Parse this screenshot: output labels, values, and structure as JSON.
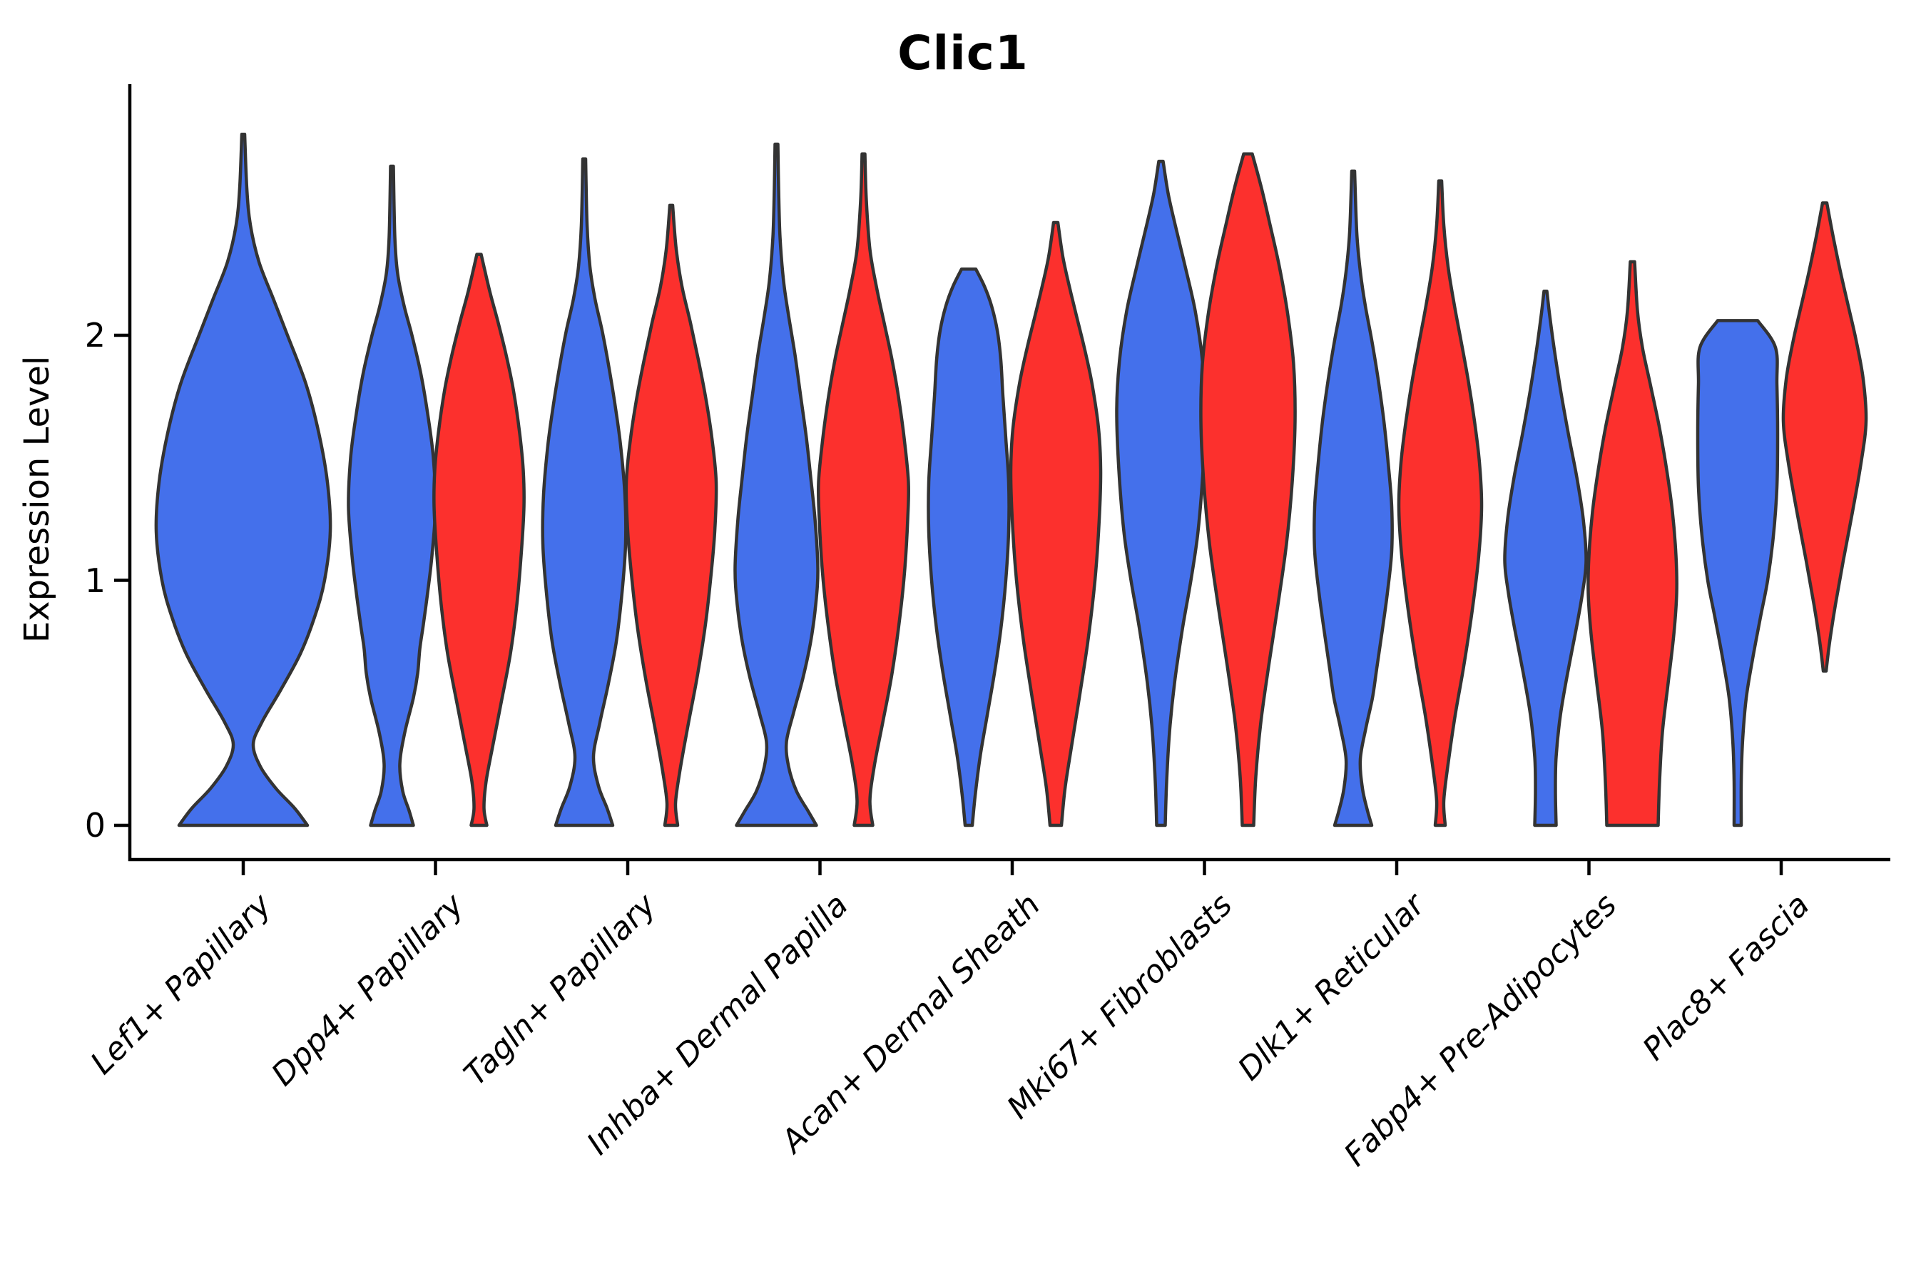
{
  "title": "Clic1",
  "axes": {
    "y_label": "Expression Level",
    "y_ticks": [
      "0",
      "1",
      "2"
    ],
    "x_categories": [
      "Lef1+ Papillary",
      "Dpp4+ Papillary",
      "Tagln+ Papillary",
      "Inhba+ Dermal Papilla",
      "Acan+ Dermal Sheath",
      "Mki67+ Fibroblasts",
      "Dlk1+ Reticular",
      "Fabp4+ Pre-Adipocytes",
      "Plac8+ Fascia"
    ]
  },
  "colors": {
    "blue": "#4470EB",
    "red": "#FC302D",
    "outline": "#333333",
    "axis": "#000000"
  },
  "chart_data": {
    "type": "violin",
    "title": "Clic1",
    "ylabel": "Expression Level",
    "yticks": [
      0,
      1,
      2
    ],
    "ylim": [
      -0.14,
      3.05
    ],
    "grid": false,
    "legend": "none",
    "categories": [
      "Lef1+ Papillary",
      "Dpp4+ Papillary",
      "Tagln+ Papillary",
      "Inhba+ Dermal Papilla",
      "Acan+ Dermal Sheath",
      "Mki67+ Fibroblasts",
      "Dlk1+ Reticular",
      "Fabp4+ Pre-Adipocytes",
      "Plac8+ Fascia"
    ],
    "splits": [
      "blue",
      "red"
    ],
    "violins": [
      {
        "category_index": 0,
        "split": "blue",
        "dodge": 0,
        "profile": [
          [
            0,
            90
          ],
          [
            0.07,
            72
          ],
          [
            0.15,
            46
          ],
          [
            0.24,
            24
          ],
          [
            0.33,
            14
          ],
          [
            0.42,
            26
          ],
          [
            0.55,
            52
          ],
          [
            0.7,
            80
          ],
          [
            0.85,
            100
          ],
          [
            1.0,
            114
          ],
          [
            1.2,
            122
          ],
          [
            1.4,
            118
          ],
          [
            1.6,
            106
          ],
          [
            1.8,
            88
          ],
          [
            2.0,
            62
          ],
          [
            2.15,
            42
          ],
          [
            2.3,
            22
          ],
          [
            2.45,
            10
          ],
          [
            2.6,
            5
          ],
          [
            2.82,
            2
          ]
        ]
      },
      {
        "category_index": 1,
        "split": "blue",
        "dodge": -1,
        "profile": [
          [
            0,
            30
          ],
          [
            0.06,
            24
          ],
          [
            0.14,
            15
          ],
          [
            0.25,
            11
          ],
          [
            0.38,
            18
          ],
          [
            0.52,
            30
          ],
          [
            0.62,
            36
          ],
          [
            0.72,
            39
          ],
          [
            0.82,
            44
          ],
          [
            0.95,
            50
          ],
          [
            1.1,
            56
          ],
          [
            1.3,
            61
          ],
          [
            1.5,
            58
          ],
          [
            1.68,
            50
          ],
          [
            1.85,
            40
          ],
          [
            2.0,
            28
          ],
          [
            2.12,
            17
          ],
          [
            2.25,
            8
          ],
          [
            2.4,
            4
          ],
          [
            2.69,
            2
          ]
        ]
      },
      {
        "category_index": 1,
        "split": "red",
        "dodge": 1,
        "profile": [
          [
            0,
            11
          ],
          [
            0.07,
            7
          ],
          [
            0.18,
            10
          ],
          [
            0.32,
            19
          ],
          [
            0.5,
            31
          ],
          [
            0.7,
            44
          ],
          [
            0.9,
            53
          ],
          [
            1.1,
            59
          ],
          [
            1.3,
            63
          ],
          [
            1.45,
            62
          ],
          [
            1.6,
            57
          ],
          [
            1.78,
            48
          ],
          [
            1.92,
            38
          ],
          [
            2.05,
            27
          ],
          [
            2.18,
            15
          ],
          [
            2.33,
            3
          ]
        ]
      },
      {
        "category_index": 2,
        "split": "blue",
        "dodge": -1,
        "profile": [
          [
            0,
            40
          ],
          [
            0.07,
            32
          ],
          [
            0.16,
            20
          ],
          [
            0.28,
            13
          ],
          [
            0.42,
            22
          ],
          [
            0.58,
            34
          ],
          [
            0.75,
            45
          ],
          [
            0.95,
            53
          ],
          [
            1.15,
            58
          ],
          [
            1.35,
            57
          ],
          [
            1.55,
            51
          ],
          [
            1.72,
            43
          ],
          [
            1.88,
            34
          ],
          [
            2.02,
            25
          ],
          [
            2.15,
            15
          ],
          [
            2.28,
            8
          ],
          [
            2.45,
            4
          ],
          [
            2.72,
            2
          ]
        ]
      },
      {
        "category_index": 2,
        "split": "red",
        "dodge": 1,
        "profile": [
          [
            0,
            9
          ],
          [
            0.09,
            6
          ],
          [
            0.22,
            12
          ],
          [
            0.4,
            23
          ],
          [
            0.6,
            36
          ],
          [
            0.8,
            47
          ],
          [
            1.0,
            55
          ],
          [
            1.2,
            61
          ],
          [
            1.4,
            63
          ],
          [
            1.58,
            57
          ],
          [
            1.75,
            48
          ],
          [
            1.9,
            38
          ],
          [
            2.05,
            27
          ],
          [
            2.2,
            15
          ],
          [
            2.35,
            7
          ],
          [
            2.53,
            2
          ]
        ]
      },
      {
        "category_index": 3,
        "split": "blue",
        "dodge": -1,
        "profile": [
          [
            0,
            56
          ],
          [
            0.06,
            44
          ],
          [
            0.14,
            28
          ],
          [
            0.24,
            17
          ],
          [
            0.34,
            14
          ],
          [
            0.46,
            24
          ],
          [
            0.6,
            37
          ],
          [
            0.75,
            48
          ],
          [
            0.9,
            55
          ],
          [
            1.05,
            58
          ],
          [
            1.25,
            54
          ],
          [
            1.42,
            48
          ],
          [
            1.58,
            42
          ],
          [
            1.75,
            34
          ],
          [
            1.92,
            26
          ],
          [
            2.08,
            17
          ],
          [
            2.22,
            10
          ],
          [
            2.4,
            5
          ],
          [
            2.6,
            3
          ],
          [
            2.78,
            2
          ]
        ]
      },
      {
        "category_index": 3,
        "split": "red",
        "dodge": 1,
        "profile": [
          [
            0,
            13
          ],
          [
            0.1,
            9
          ],
          [
            0.24,
            15
          ],
          [
            0.42,
            27
          ],
          [
            0.62,
            40
          ],
          [
            0.85,
            51
          ],
          [
            1.05,
            58
          ],
          [
            1.25,
            62
          ],
          [
            1.4,
            63
          ],
          [
            1.58,
            57
          ],
          [
            1.75,
            49
          ],
          [
            1.9,
            40
          ],
          [
            2.05,
            29
          ],
          [
            2.2,
            18
          ],
          [
            2.35,
            9
          ],
          [
            2.55,
            4
          ],
          [
            2.74,
            2
          ]
        ]
      },
      {
        "category_index": 4,
        "split": "blue",
        "dodge": -1,
        "profile": [
          [
            0,
            5
          ],
          [
            0.12,
            9
          ],
          [
            0.28,
            16
          ],
          [
            0.45,
            26
          ],
          [
            0.62,
            36
          ],
          [
            0.8,
            45
          ],
          [
            1.0,
            52
          ],
          [
            1.2,
            56
          ],
          [
            1.4,
            56
          ],
          [
            1.58,
            52
          ],
          [
            1.75,
            48
          ],
          [
            1.9,
            45
          ],
          [
            2.02,
            40
          ],
          [
            2.12,
            32
          ],
          [
            2.2,
            22
          ],
          [
            2.27,
            10
          ]
        ]
      },
      {
        "category_index": 4,
        "split": "red",
        "dodge": 1,
        "profile": [
          [
            0,
            8
          ],
          [
            0.15,
            13
          ],
          [
            0.32,
            22
          ],
          [
            0.52,
            33
          ],
          [
            0.75,
            45
          ],
          [
            1.0,
            55
          ],
          [
            1.25,
            61
          ],
          [
            1.45,
            63
          ],
          [
            1.62,
            60
          ],
          [
            1.8,
            51
          ],
          [
            1.95,
            40
          ],
          [
            2.08,
            29
          ],
          [
            2.2,
            19
          ],
          [
            2.32,
            10
          ],
          [
            2.46,
            3
          ]
        ]
      },
      {
        "category_index": 5,
        "split": "blue",
        "dodge": -1,
        "profile": [
          [
            0,
            6
          ],
          [
            0.18,
            8
          ],
          [
            0.38,
            12
          ],
          [
            0.58,
            19
          ],
          [
            0.8,
            30
          ],
          [
            1.0,
            42
          ],
          [
            1.2,
            52
          ],
          [
            1.45,
            59
          ],
          [
            1.7,
            62
          ],
          [
            1.9,
            58
          ],
          [
            2.1,
            48
          ],
          [
            2.28,
            34
          ],
          [
            2.45,
            20
          ],
          [
            2.58,
            10
          ],
          [
            2.71,
            3
          ]
        ]
      },
      {
        "category_index": 5,
        "split": "red",
        "dodge": 1,
        "profile": [
          [
            0,
            8
          ],
          [
            0.2,
            11
          ],
          [
            0.42,
            18
          ],
          [
            0.65,
            29
          ],
          [
            0.9,
            42
          ],
          [
            1.15,
            54
          ],
          [
            1.4,
            62
          ],
          [
            1.65,
            66
          ],
          [
            1.88,
            64
          ],
          [
            2.08,
            56
          ],
          [
            2.28,
            44
          ],
          [
            2.45,
            31
          ],
          [
            2.6,
            19
          ],
          [
            2.74,
            6
          ]
        ]
      },
      {
        "category_index": 6,
        "split": "blue",
        "dodge": -1,
        "profile": [
          [
            0,
            26
          ],
          [
            0.06,
            20
          ],
          [
            0.15,
            13
          ],
          [
            0.27,
            10
          ],
          [
            0.4,
            18
          ],
          [
            0.52,
            27
          ],
          [
            0.64,
            33
          ],
          [
            0.78,
            40
          ],
          [
            0.95,
            48
          ],
          [
            1.12,
            54
          ],
          [
            1.3,
            54
          ],
          [
            1.48,
            49
          ],
          [
            1.65,
            43
          ],
          [
            1.82,
            35
          ],
          [
            1.98,
            26
          ],
          [
            2.12,
            17
          ],
          [
            2.26,
            10
          ],
          [
            2.42,
            5
          ],
          [
            2.67,
            2
          ]
        ]
      },
      {
        "category_index": 6,
        "split": "red",
        "dodge": 1,
        "profile": [
          [
            0,
            7
          ],
          [
            0.1,
            5
          ],
          [
            0.25,
            11
          ],
          [
            0.45,
            21
          ],
          [
            0.65,
            33
          ],
          [
            0.88,
            45
          ],
          [
            1.1,
            54
          ],
          [
            1.3,
            58
          ],
          [
            1.48,
            55
          ],
          [
            1.65,
            48
          ],
          [
            1.82,
            39
          ],
          [
            1.98,
            29
          ],
          [
            2.12,
            20
          ],
          [
            2.28,
            11
          ],
          [
            2.45,
            5
          ],
          [
            2.63,
            2
          ]
        ]
      },
      {
        "category_index": 7,
        "split": "blue",
        "dodge": -1,
        "profile": [
          [
            0,
            15
          ],
          [
            0.14,
            14
          ],
          [
            0.28,
            15
          ],
          [
            0.45,
            21
          ],
          [
            0.62,
            31
          ],
          [
            0.8,
            43
          ],
          [
            0.95,
            52
          ],
          [
            1.08,
            57
          ],
          [
            1.25,
            53
          ],
          [
            1.42,
            44
          ],
          [
            1.6,
            32
          ],
          [
            1.78,
            21
          ],
          [
            1.95,
            12
          ],
          [
            2.08,
            6
          ],
          [
            2.18,
            2
          ]
        ]
      },
      {
        "category_index": 7,
        "split": "red",
        "dodge": 1,
        "profile": [
          [
            0,
            36
          ],
          [
            0.18,
            38
          ],
          [
            0.38,
            42
          ],
          [
            0.58,
            50
          ],
          [
            0.78,
            58
          ],
          [
            0.95,
            62
          ],
          [
            1.1,
            61
          ],
          [
            1.28,
            56
          ],
          [
            1.45,
            48
          ],
          [
            1.62,
            38
          ],
          [
            1.8,
            25
          ],
          [
            1.95,
            14
          ],
          [
            2.1,
            7
          ],
          [
            2.3,
            3
          ]
        ]
      },
      {
        "category_index": 8,
        "split": "blue",
        "dodge": -1,
        "profile": [
          [
            0,
            5
          ],
          [
            0.18,
            5
          ],
          [
            0.35,
            7
          ],
          [
            0.52,
            12
          ],
          [
            0.68,
            21
          ],
          [
            0.85,
            32
          ],
          [
            1.0,
            42
          ],
          [
            1.18,
            50
          ],
          [
            1.38,
            55
          ],
          [
            1.6,
            56
          ],
          [
            1.8,
            55
          ],
          [
            1.95,
            53
          ],
          [
            2.06,
            28
          ]
        ]
      },
      {
        "category_index": 8,
        "split": "red",
        "dodge": 1,
        "profile": [
          [
            0.63,
            2
          ],
          [
            0.75,
            7
          ],
          [
            0.9,
            15
          ],
          [
            1.08,
            26
          ],
          [
            1.28,
            39
          ],
          [
            1.48,
            51
          ],
          [
            1.65,
            58
          ],
          [
            1.82,
            54
          ],
          [
            1.98,
            44
          ],
          [
            2.12,
            33
          ],
          [
            2.26,
            22
          ],
          [
            2.4,
            12
          ],
          [
            2.54,
            3
          ]
        ]
      }
    ]
  }
}
